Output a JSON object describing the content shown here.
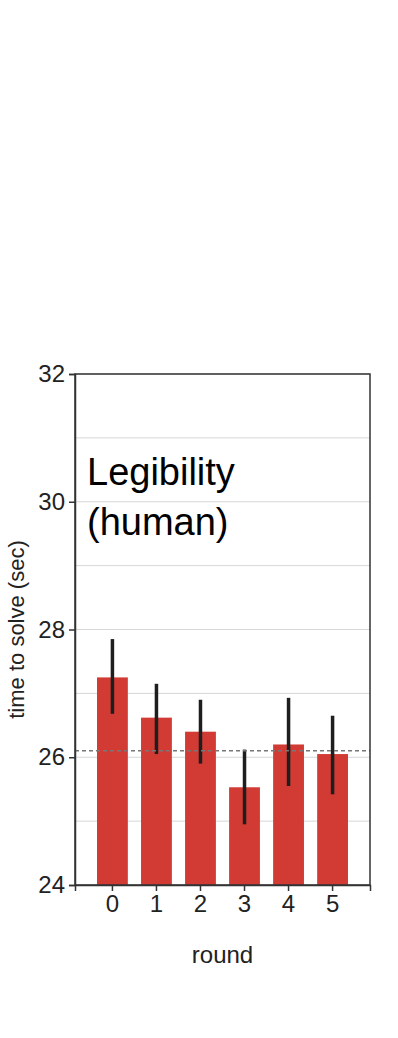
{
  "chart_data": {
    "type": "bar",
    "title": [
      "Legibility",
      "(human)"
    ],
    "x_label": "round",
    "y_label": "time to solve (sec)",
    "categories": [
      "0",
      "1",
      "2",
      "3",
      "4",
      "5"
    ],
    "values": [
      27.25,
      26.62,
      26.4,
      25.53,
      26.2,
      26.05
    ],
    "error_low": [
      26.68,
      26.05,
      25.9,
      24.95,
      25.55,
      25.42
    ],
    "error_high": [
      27.85,
      27.15,
      26.9,
      26.12,
      26.93,
      26.65
    ],
    "reference_line": 26.1,
    "color": "#d13b34",
    "ylim": [
      24,
      32
    ],
    "yticks": [
      24,
      26,
      28,
      30,
      32
    ],
    "minor_yticks": [
      25,
      27,
      29,
      31
    ],
    "grid": true
  }
}
